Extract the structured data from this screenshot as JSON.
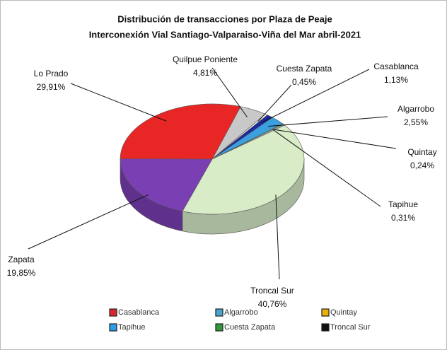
{
  "chart_data": {
    "type": "pie3d",
    "title": "Distribución de transacciones por Plaza de Peaje",
    "subtitle": "Interconexión Vial Santiago-Valparaiso-Viña  del Mar abril-2021",
    "categories": [
      "Quilpue Poniente",
      "Cuesta Zapata",
      "Casablanca",
      "Algarrobo",
      "Quintay",
      "Tapihue",
      "Troncal Sur",
      "Zapata",
      "Lo Prado"
    ],
    "values": [
      4.81,
      0.45,
      1.13,
      2.55,
      0.24,
      0.31,
      40.76,
      19.85,
      29.91
    ],
    "value_labels": [
      "4,81%",
      "0,45%",
      "1,13%",
      "2,55%",
      "0,24%",
      "0,31%",
      "40,76%",
      "19,85%",
      "29,91%"
    ],
    "colors": [
      "#c8c8c8",
      "#f4f4f4",
      "#1a2a9c",
      "#3aa0e0",
      "#e8c000",
      "#8fd0f0",
      "#d8ecc8",
      "#7b3fb4",
      "#e82626"
    ],
    "legend": [
      {
        "name": "Casablanca",
        "color": "#d8262e"
      },
      {
        "name": "Algarrobo",
        "color": "#4aa3d0"
      },
      {
        "name": "Quintay",
        "color": "#e8b000"
      },
      {
        "name": "Tapihue",
        "color": "#2aa0e8"
      },
      {
        "name": "Cuesta Zapata",
        "color": "#2e9a3a"
      },
      {
        "name": "Troncal Sur",
        "color": "#111111"
      }
    ]
  }
}
